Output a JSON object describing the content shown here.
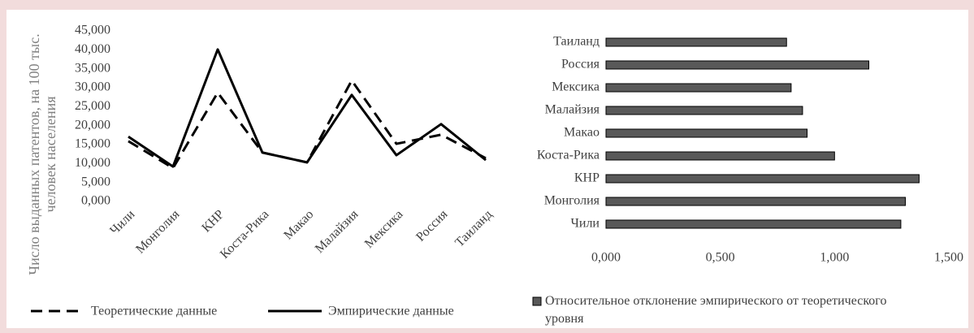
{
  "chart_data": [
    {
      "type": "line",
      "y_label": "Число выданных патентов, на 100 тыс. человек населения",
      "categories": [
        "Чили",
        "Монголия",
        "КНР",
        "Коста-Рика",
        "Макао",
        "Малайзия",
        "Мексика",
        "Россия",
        "Таиланд"
      ],
      "series": [
        {
          "name": "Теоретические данные",
          "color": "#000000",
          "dashed": true,
          "values": [
            15.9,
            8.8,
            28.7,
            12.9,
            10.3,
            31.9,
            15.2,
            17.6,
            11.4
          ]
        },
        {
          "name": "Эмпирические данные",
          "color": "#000000",
          "dashed": false,
          "values": [
            17.1,
            9.2,
            40.1,
            12.9,
            10.3,
            28.1,
            12.2,
            20.4,
            10.9
          ]
        }
      ],
      "ylim": [
        0,
        45
      ],
      "yticks": [
        {
          "value": 0,
          "label": "0,000"
        },
        {
          "value": 5,
          "label": "5,000"
        },
        {
          "value": 10,
          "label": "10,000"
        },
        {
          "value": 15,
          "label": "15,000"
        },
        {
          "value": 20,
          "label": "20,000"
        },
        {
          "value": 25,
          "label": "25,000"
        },
        {
          "value": 30,
          "label": "30,000"
        },
        {
          "value": 35,
          "label": "35,000"
        },
        {
          "value": 40,
          "label": "40,000"
        },
        {
          "value": 45,
          "label": "45,000"
        }
      ]
    },
    {
      "type": "barh",
      "categories": [
        "Чили",
        "Монголия",
        "КНР",
        "Коста-Рика",
        "Макао",
        "Малайзия",
        "Мексика",
        "Россия",
        "Таиланд"
      ],
      "series": [
        {
          "name": "Относительное отклонение эмпирического от теоретического уровня",
          "color": "#595959",
          "values": [
            1.29,
            1.31,
            1.37,
            1.0,
            0.88,
            0.86,
            0.81,
            1.15,
            0.79
          ]
        }
      ],
      "xlim": [
        0,
        1.5
      ],
      "xticks": [
        {
          "value": 0,
          "label": "0,000"
        },
        {
          "value": 0.5,
          "label": "0,500"
        },
        {
          "value": 1,
          "label": "1,000"
        },
        {
          "value": 1.5,
          "label": "1,500"
        }
      ]
    }
  ]
}
